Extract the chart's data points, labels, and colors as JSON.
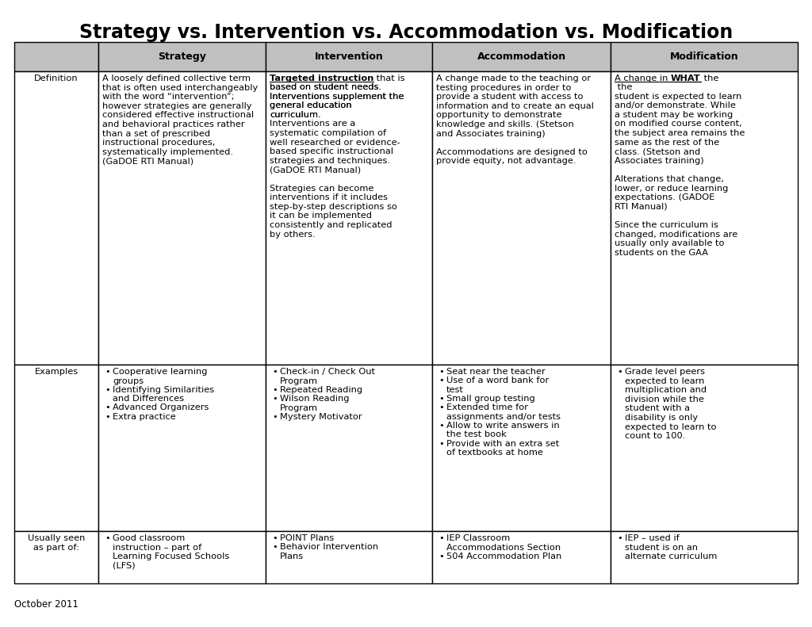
{
  "title": "Strategy vs. Intervention vs. Accommodation vs. Modification",
  "title_fontsize": 17,
  "footer": "October 2011",
  "col_headers": [
    "Strategy",
    "Intervention",
    "Accommodation",
    "Modification"
  ],
  "row_headers": [
    "Definition",
    "Examples",
    "Usually seen\nas part of:"
  ],
  "header_bg": "#c0c0c0",
  "cell_bg": "#ffffff",
  "border_color": "#000000",
  "text_color": "#000000",
  "definition_strategy": "A loosely defined collective term\nthat is often used interchangeably\nwith the word “intervention”;\nhowever strategies are generally\nconsidered effective instructional\nand behavioral practices rather\nthan a set of prescribed\ninstructional procedures,\nsystematically implemented.\n(GaDOE RTI Manual)",
  "definition_accommodation": "A change made to the teaching or\ntesting procedures in order to\nprovide a student with access to\ninformation and to create an equal\nopportunity to demonstrate\nknowledge and skills. (Stetson\nand Associates training)\n\nAccommodations are designed to\nprovide equity, not advantage.",
  "definition_intervention_line1_bold": "Targeted instruction",
  "definition_intervention_line1_rest": " that is\nbased on student needs.\nInterventions supplement the\ngeneral education\ncurriculum.",
  "definition_intervention_rest": "\nInterventions are a\nsystematic compilation of\nwell researched or evidence-\nbased specific instructional\nstrategies and techniques.\n(GaDOE RTI Manual)\n\nStrategies can become\ninterventions if it includes\nstep-by-step descriptions so\nit can be implemented\nconsistently and replicated\nby others.",
  "definition_mod_prefix": "A change in ",
  "definition_mod_bold": "WHAT",
  "definition_mod_suffix": " the\nstudent is expected to learn\nand/or demonstrate. While\na student may be working\non modified course content,\nthe subject area remains the\nsame as the rest of the\nclass. (Stetson and\nAssociates training)\n\nAlterations that change,\nlower, or reduce learning\nexpectations. (GADOE\nRTI Manual)\n\nSince the curriculum is\nchanged, modifications are\nusually only available to\nstudents on the GAA",
  "examples_strategy": [
    "Cooperative learning\ngroups",
    "Identifying Similarities\nand Differences",
    "Advanced Organizers",
    "Extra practice"
  ],
  "examples_intervention": [
    "Check-in / Check Out\nProgram",
    "Repeated Reading",
    "Wilson Reading\nProgram",
    "Mystery Motivator"
  ],
  "examples_accommodation": [
    "Seat near the teacher",
    "Use of a word bank for\ntest",
    "Small group testing",
    "Extended time for\nassignments and/or tests",
    "Allow to write answers in\nthe test book",
    "Provide with an extra set\nof textbooks at home"
  ],
  "examples_modification": [
    "Grade level peers\nexpected to learn\nmultiplication and\ndivision while the\nstudent with a\ndisability is only\nexpected to learn to\ncount to 100."
  ],
  "usually_strategy": [
    "Good classroom\ninstruction – part of\nLearning Focused Schools\n(LFS)"
  ],
  "usually_intervention": [
    "POINT Plans",
    "Behavior Intervention\nPlans"
  ],
  "usually_accommodation": [
    "IEP Classroom\nAccommodations Section",
    "504 Accommodation Plan"
  ],
  "usually_modification": [
    "IEP – used if\nstudent is on an\nalternate curriculum"
  ]
}
